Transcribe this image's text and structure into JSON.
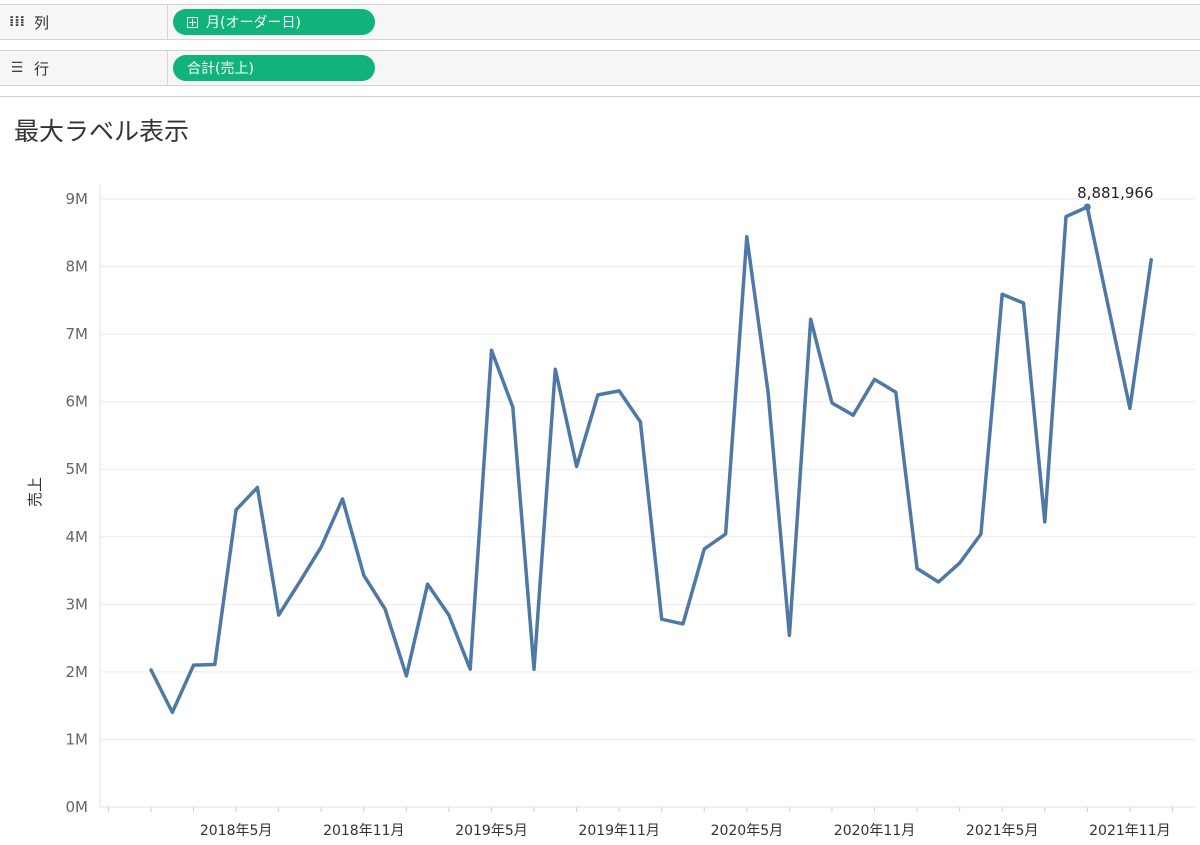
{
  "shelves": {
    "columns": {
      "label": "列",
      "icon": "columns-icon",
      "pill": "月(オーダー日)"
    },
    "rows": {
      "label": "行",
      "icon": "rows-icon",
      "pill": "合計(売上)"
    }
  },
  "colors": {
    "line": "#4e79a7",
    "pill": "#10b37a"
  },
  "chart_data": {
    "type": "line",
    "title": "最大ラベル表示",
    "ylabel": "売上",
    "xlabel": "",
    "ylim": [
      0,
      9000000
    ],
    "grid": true,
    "y_ticks": [
      "0M",
      "1M",
      "2M",
      "3M",
      "4M",
      "5M",
      "6M",
      "7M",
      "8M",
      "9M"
    ],
    "x_ticks": [
      "2018年5月",
      "2018年11月",
      "2019年5月",
      "2019年11月",
      "2020年5月",
      "2020年11月",
      "2021年5月",
      "2021年11月"
    ],
    "x": [
      "2018-01",
      "2018-02",
      "2018-03",
      "2018-04",
      "2018-05",
      "2018-06",
      "2018-07",
      "2018-08",
      "2018-09",
      "2018-10",
      "2018-11",
      "2018-12",
      "2019-01",
      "2019-02",
      "2019-03",
      "2019-04",
      "2019-05",
      "2019-06",
      "2019-07",
      "2019-08",
      "2019-09",
      "2019-10",
      "2019-11",
      "2019-12",
      "2020-01",
      "2020-02",
      "2020-03",
      "2020-04",
      "2020-05",
      "2020-06",
      "2020-07",
      "2020-08",
      "2020-09",
      "2020-10",
      "2020-11",
      "2020-12",
      "2021-01",
      "2021-02",
      "2021-03",
      "2021-04",
      "2021-05",
      "2021-06",
      "2021-07",
      "2021-08",
      "2021-09",
      "2021-10",
      "2021-11",
      "2021-12"
    ],
    "series": [
      {
        "values": [
          2030000,
          1400000,
          2100000,
          2110000,
          4400000,
          4730000,
          2840000,
          3340000,
          3850000,
          4560000,
          3430000,
          2930000,
          1940000,
          3300000,
          2840000,
          2040000,
          6760000,
          5920000,
          2040000,
          6480000,
          5040000,
          6100000,
          6160000,
          5700000,
          2780000,
          2710000,
          3820000,
          4040000,
          8440000,
          6140000,
          2540000,
          7220000,
          5980000,
          5800000,
          6330000,
          6140000,
          3530000,
          3330000,
          3610000,
          4040000,
          7590000,
          7460000,
          4220000,
          8740000,
          8881966,
          7390000,
          5900000,
          8100000
        ],
        "max_label": "8,881,966",
        "max_index": 44
      }
    ]
  }
}
